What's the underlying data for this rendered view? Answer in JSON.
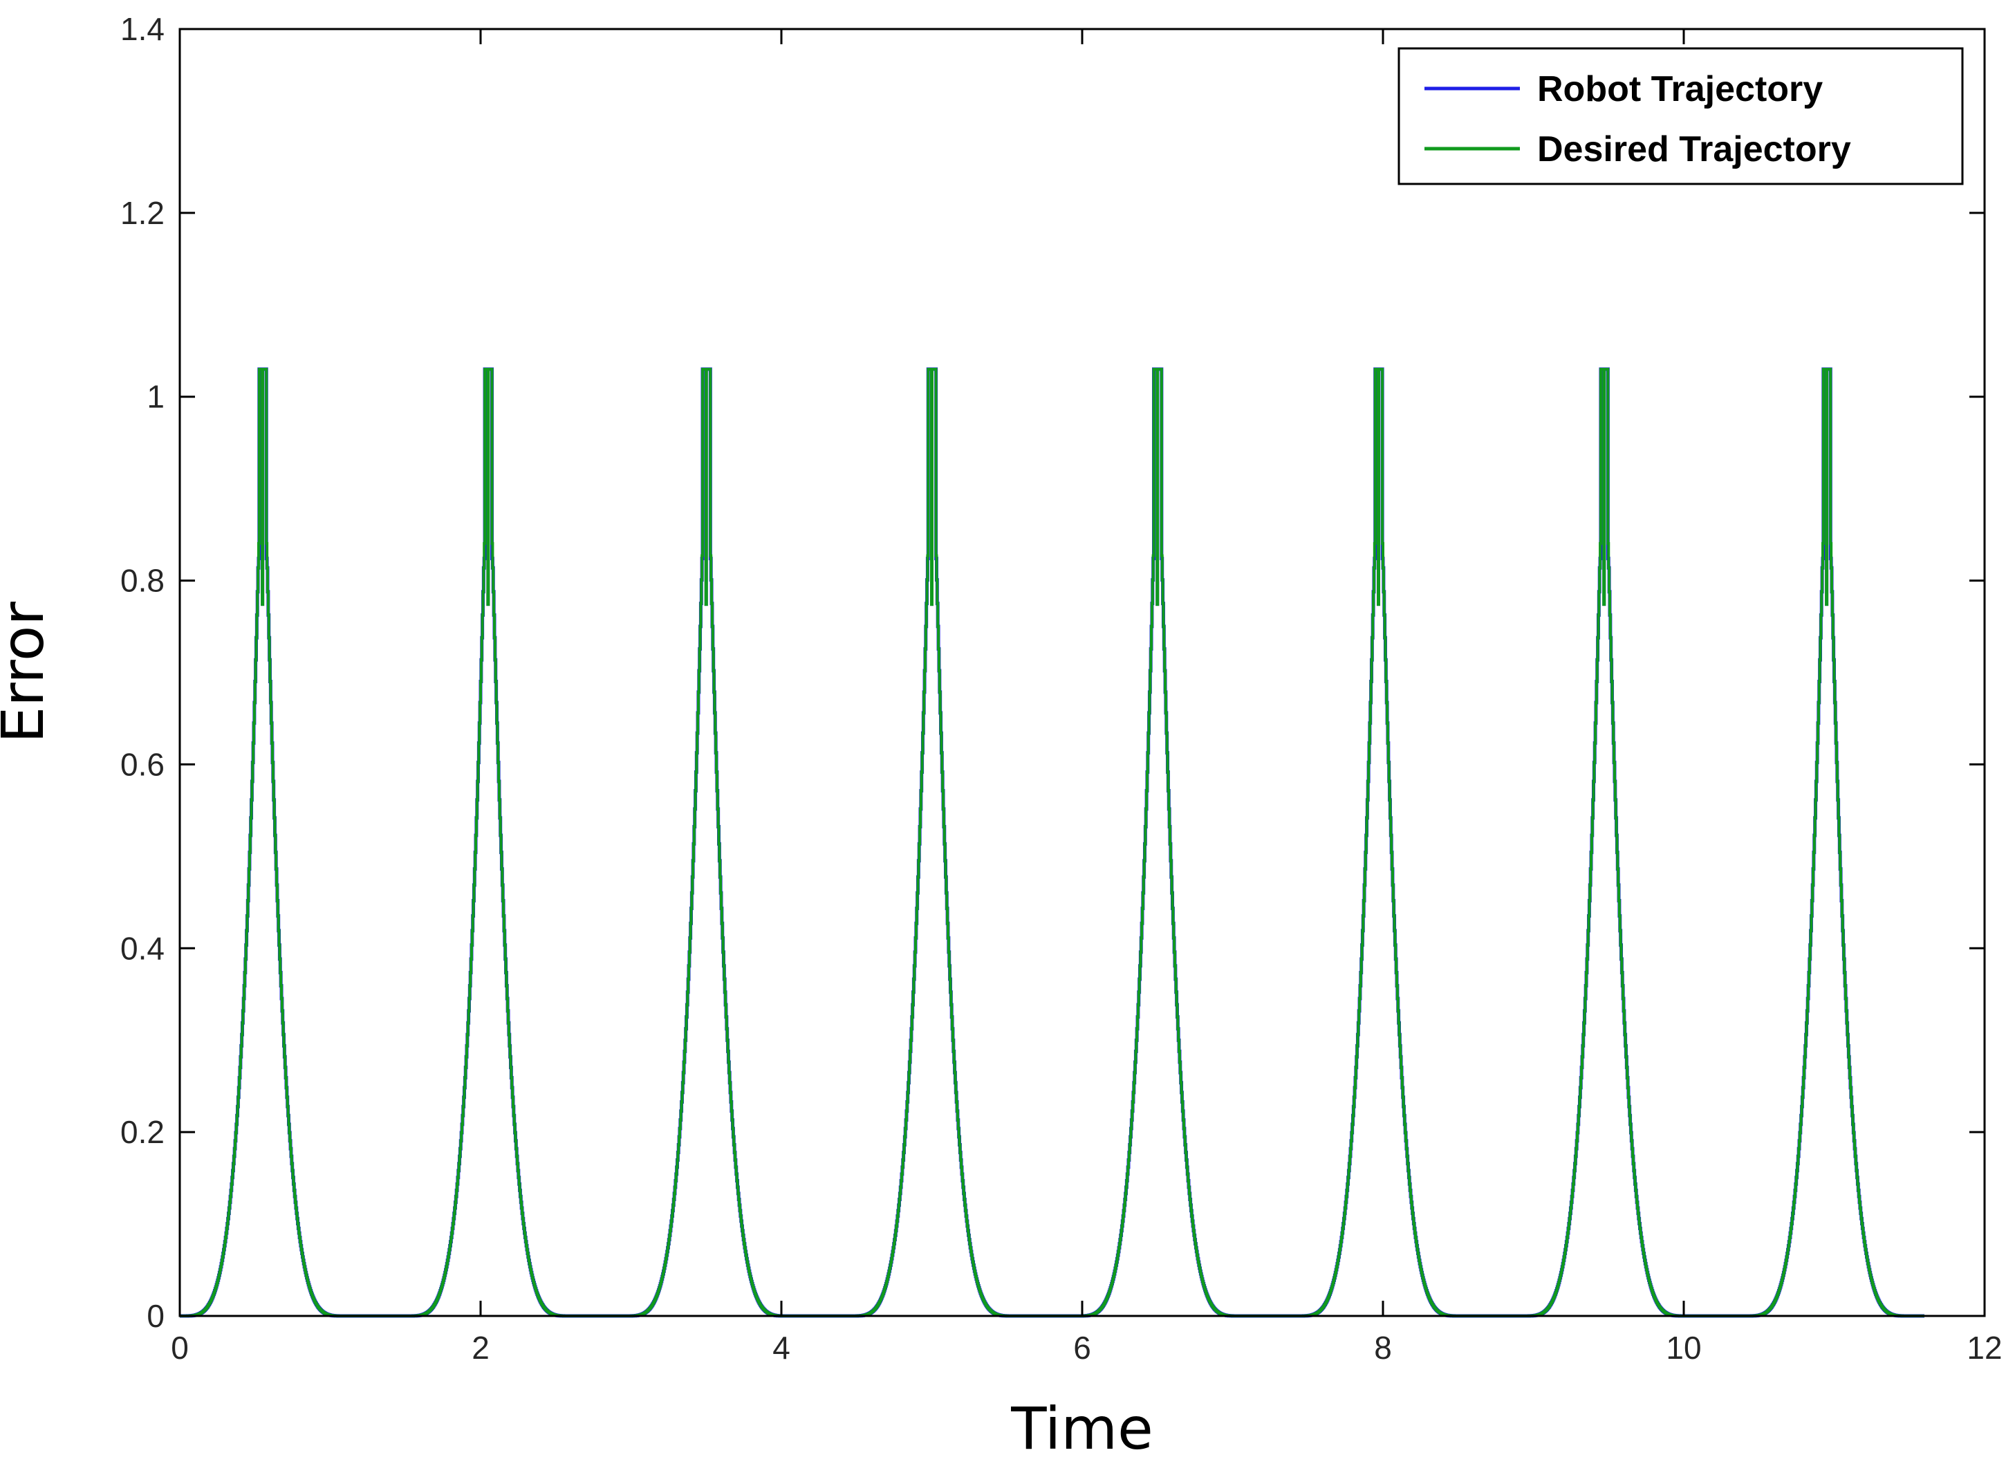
{
  "chart_data": {
    "type": "line",
    "title": "",
    "xlabel": "Time",
    "ylabel": "Error",
    "xlim": [
      0,
      12
    ],
    "ylim": [
      0,
      1.4
    ],
    "xticks": [
      0,
      2,
      4,
      6,
      8,
      10,
      12
    ],
    "yticks": [
      0,
      0.2,
      0.4,
      0.6,
      0.8,
      1,
      1.2,
      1.4
    ],
    "xtick_labels": [
      "0",
      "2",
      "4",
      "6",
      "8",
      "10",
      "12"
    ],
    "ytick_labels": [
      "0",
      "0.2",
      "0.4",
      "0.6",
      "0.8",
      "1",
      "1.2",
      "1.4"
    ],
    "grid": false,
    "legend_position": "top-right",
    "x_end": 11.6,
    "series": [
      {
        "name": "Robot Trajectory",
        "color": "#1f1fe6",
        "peaks": [
          {
            "t": 0.55,
            "value": 1.03
          },
          {
            "t": 2.05,
            "value": 1.03
          },
          {
            "t": 3.5,
            "value": 1.03
          },
          {
            "t": 5.0,
            "value": 1.03
          },
          {
            "t": 6.5,
            "value": 1.03
          },
          {
            "t": 7.97,
            "value": 1.03
          },
          {
            "t": 9.47,
            "value": 1.03
          },
          {
            "t": 10.95,
            "value": 1.03
          }
        ],
        "peak_halfwidth": 0.55
      },
      {
        "name": "Desired Trajectory",
        "color": "#109a1e",
        "peaks": [
          {
            "t": 0.55,
            "value": 1.03
          },
          {
            "t": 2.05,
            "value": 1.03
          },
          {
            "t": 3.5,
            "value": 1.03
          },
          {
            "t": 5.0,
            "value": 1.03
          },
          {
            "t": 6.5,
            "value": 1.03
          },
          {
            "t": 7.97,
            "value": 1.03
          },
          {
            "t": 9.47,
            "value": 1.03
          },
          {
            "t": 10.95,
            "value": 1.03
          }
        ],
        "peak_halfwidth": 0.55
      }
    ]
  }
}
